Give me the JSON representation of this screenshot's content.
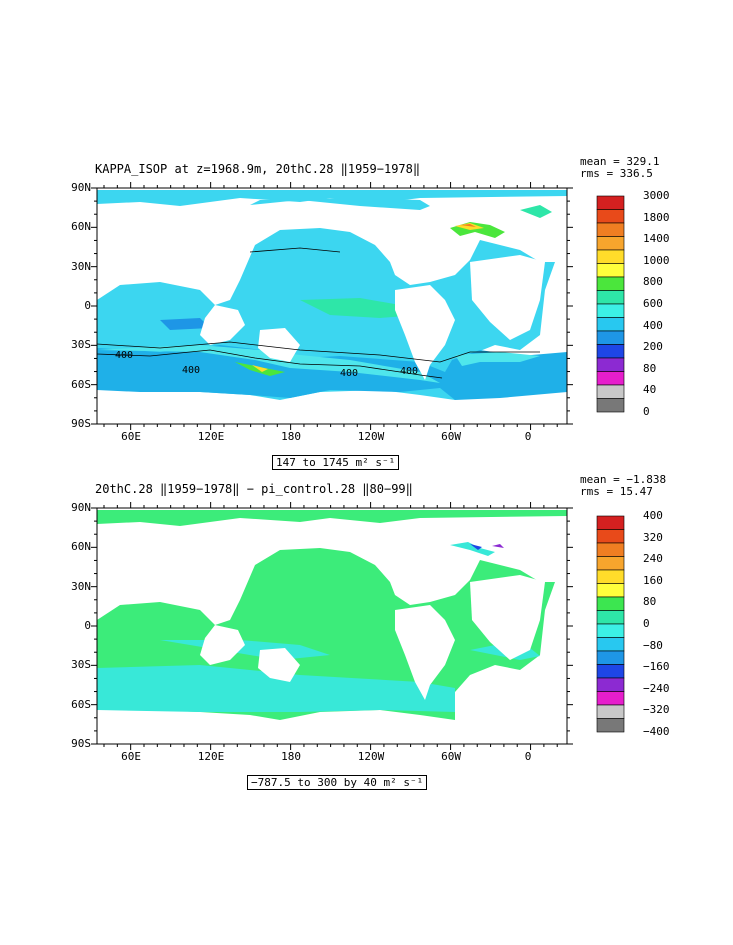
{
  "panels": [
    {
      "title": "KAPPA_ISOP at z=1968.9m, 20thC.28 ‖1959−1978‖",
      "stats": "mean = 329.1\nrms = 336.5",
      "range": "147 to 1745 m² s⁻¹",
      "lat_labels": [
        "90N",
        "60N",
        "30N",
        "0",
        "30S",
        "60S",
        "90S"
      ],
      "lon_labels": [
        "60E",
        "120E",
        "180",
        "120W",
        "60W",
        "0"
      ],
      "colorbar": {
        "labels": [
          "3000",
          "1800",
          "1400",
          "1000",
          "800",
          "600",
          "400",
          "200",
          "80",
          "40",
          "0"
        ],
        "colors": [
          "#d42020",
          "#e84a1a",
          "#f07e22",
          "#f7a52d",
          "#ffdc2a",
          "#ffff3c",
          "#4be63c",
          "#2ee6a8",
          "#3cf0e6",
          "#28c8f0",
          "#1e96e6",
          "#1e46e6",
          "#8c2ad2",
          "#e61ecc",
          "#c8c8c8",
          "#787878"
        ]
      },
      "contour_labels": [
        "400",
        "400",
        "400",
        "400"
      ]
    },
    {
      "title": "20thC.28 ‖1959−1978‖ − pi_control.28 ‖80−99‖",
      "stats": "mean = −1.838\nrms = 15.47",
      "range": "−787.5 to 300 by 40 m² s⁻¹",
      "lat_labels": [
        "90N",
        "60N",
        "30N",
        "0",
        "30S",
        "60S",
        "90S"
      ],
      "lon_labels": [
        "60E",
        "120E",
        "180",
        "120W",
        "60W",
        "0"
      ],
      "colorbar": {
        "labels": [
          "400",
          "320",
          "240",
          "160",
          "80",
          "0",
          "−80",
          "−160",
          "−240",
          "−320",
          "−400"
        ],
        "colors": [
          "#d42020",
          "#e84a1a",
          "#f07e22",
          "#f7a52d",
          "#ffdc2a",
          "#ffff3c",
          "#3ce650",
          "#2ee6a8",
          "#3cf0e6",
          "#28c8f0",
          "#1e96e6",
          "#1e46e6",
          "#8c2ad2",
          "#e61ecc",
          "#c8c8c8",
          "#787878"
        ]
      }
    }
  ],
  "colors": {
    "ocean_top": "#3cd6f0",
    "ocean_top_deep": "#1fb0e8",
    "ocean_top_pale": "#4fe6ec",
    "ocean_bottom": "#3cec7a",
    "ocean_bottom_cyan": "#38e8d8",
    "land": "#ffffff"
  }
}
